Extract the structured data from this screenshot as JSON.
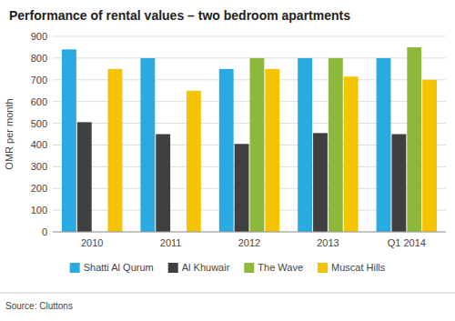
{
  "chart_data": {
    "type": "bar",
    "title": "Performance of rental values – two bedroom apartments",
    "ylabel": "OMR per month",
    "source": "Source: Cluttons",
    "categories": [
      "2010",
      "2011",
      "2012",
      "2013",
      "Q1 2014"
    ],
    "series": [
      {
        "name": "Shatti Al Qurum",
        "color": "#29abe2",
        "values": [
          840,
          800,
          750,
          800,
          800
        ]
      },
      {
        "name": "Al Khuwair",
        "color": "#404040",
        "values": [
          505,
          450,
          405,
          455,
          450
        ]
      },
      {
        "name": "The Wave",
        "color": "#8db83a",
        "values": [
          0,
          0,
          800,
          800,
          850
        ]
      },
      {
        "name": "Muscat Hills",
        "color": "#f5c400",
        "values": [
          750,
          650,
          750,
          715,
          700
        ]
      }
    ],
    "ylim": [
      0,
      900
    ],
    "yticks": [
      0,
      100,
      200,
      300,
      400,
      500,
      600,
      700,
      800,
      900
    ],
    "grid": true,
    "legend": "bottom"
  }
}
